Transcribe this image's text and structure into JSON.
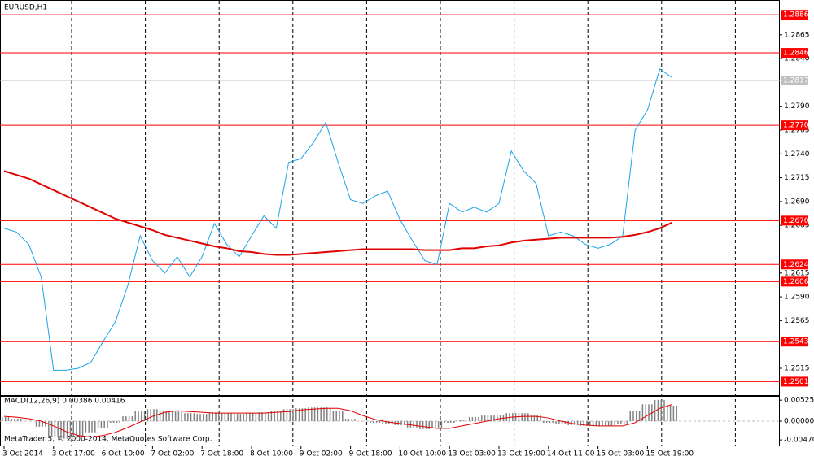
{
  "chart_data": [
    {
      "type": "line",
      "title": "EURUSD,H1",
      "categories": [
        "3 Oct 2014",
        null,
        null,
        null,
        "3 Oct 17:00",
        null,
        null,
        null,
        "6 Oct 10:00",
        null,
        null,
        null,
        "7 Oct 02:00",
        null,
        null,
        null,
        "7 Oct 18:00",
        null,
        null,
        null,
        "8 Oct 10:00",
        null,
        null,
        null,
        "9 Oct 02:00",
        null,
        null,
        null,
        "9 Oct 18:00",
        null,
        null,
        null,
        "10 Oct 10:00",
        null,
        null,
        null,
        "13 Oct 03:00",
        null,
        null,
        null,
        "13 Oct 19:00",
        null,
        null,
        null,
        "14 Oct 11:00",
        null,
        null,
        null,
        "15 Oct 03:00",
        null,
        null,
        null,
        "15 Oct 19:00",
        null,
        null
      ],
      "series": [
        {
          "name": "EURUSD",
          "color": "#1aa3e8",
          "values": [
            1.2662,
            1.2658,
            1.2645,
            1.2611,
            1.2513,
            1.2513,
            1.2515,
            1.2521,
            1.2543,
            1.2564,
            1.2602,
            1.2654,
            1.2628,
            1.2615,
            1.2632,
            1.2611,
            1.2632,
            1.2667,
            1.2645,
            1.2632,
            1.2654,
            1.2675,
            1.2662,
            1.2731,
            1.2735,
            1.2752,
            1.2773,
            1.2731,
            1.2692,
            1.2688,
            1.2696,
            1.2701,
            1.2671,
            1.2649,
            1.2628,
            1.2624,
            1.2688,
            1.2679,
            1.2684,
            1.2679,
            1.2688,
            1.2743,
            1.2722,
            1.2709,
            1.2654,
            1.2658,
            1.2654,
            1.2645,
            1.2641,
            1.2645,
            1.2654,
            1.2765,
            1.2786,
            1.2829,
            1.282
          ]
        },
        {
          "name": "MA",
          "color": "#e00000",
          "values": [
            1.2722,
            1.2718,
            1.2714,
            1.2708,
            1.2702,
            1.2696,
            1.269,
            1.2684,
            1.2678,
            1.2672,
            1.2668,
            1.2664,
            1.266,
            1.2655,
            1.2652,
            1.2649,
            1.2646,
            1.2643,
            1.2641,
            1.2638,
            1.2637,
            1.2635,
            1.2634,
            1.2634,
            1.2635,
            1.2636,
            1.2637,
            1.2638,
            1.2639,
            1.264,
            1.264,
            1.264,
            1.264,
            1.264,
            1.2639,
            1.2639,
            1.2639,
            1.2641,
            1.2641,
            1.2643,
            1.2644,
            1.2647,
            1.2649,
            1.265,
            1.2651,
            1.2652,
            1.2652,
            1.2652,
            1.2652,
            1.2652,
            1.2653,
            1.2655,
            1.2658,
            1.2662,
            1.2668
          ]
        }
      ],
      "ylim": [
        1.2486,
        1.29015
      ],
      "yticks": [
        1.2865,
        {
          "value": 1.284,
          "label": "1.2840"
        },
        {
          "value": 1.279,
          "label": "1.2790"
        },
        1.2765,
        {
          "value": 1.274,
          "label": "1.2740"
        },
        1.2715,
        {
          "value": 1.269,
          "label": "1.2690"
        },
        1.2665,
        1.2615,
        {
          "value": 1.259,
          "label": "1.2590"
        },
        1.2565,
        1.2515
      ],
      "levels": [
        1.2886,
        1.2846,
        {
          "value": 1.277,
          "label": "1.2770"
        },
        {
          "value": 1.267,
          "label": "1.2670"
        },
        1.2624,
        1.2606,
        1.2543,
        1.2501
      ],
      "level_color": "#ff0000",
      "current_price": 1.2817,
      "current_price_color": "#c0c0c0"
    },
    {
      "type": "bar",
      "title": "MACD(12,26,9) 0.00386 0.00416",
      "series": [
        {
          "name": "MACD",
          "color": "#808080",
          "values": [
            0.001,
            0.0006,
            0,
            -0.0014,
            -0.004,
            -0.0044,
            -0.0038,
            -0.0028,
            -0.0018,
            -0.0004,
            0.0012,
            0.0026,
            0.003,
            0.0026,
            0.0024,
            0.002,
            0.0018,
            0.0022,
            0.002,
            0.0018,
            0.002,
            0.0022,
            0.0026,
            0.003,
            0.0032,
            0.0034,
            0.0034,
            0.0026,
            0.0006,
            0,
            -0.0004,
            -0.0006,
            -0.001,
            -0.0016,
            -0.002,
            -0.0018,
            -0.0004,
            0.0004,
            0.001,
            0.0014,
            0.0014,
            0.002,
            0.002,
            0.0014,
            -0.0004,
            -0.0008,
            -0.001,
            -0.0012,
            -0.0012,
            -0.0012,
            -0.0008,
            0.0026,
            0.0042,
            0.0053,
            0.00386
          ]
        },
        {
          "name": "Signal",
          "color": "#e00000",
          "values": [
            0.0012,
            0.001,
            0.0006,
            0.0,
            -0.0012,
            -0.0026,
            -0.0036,
            -0.004,
            -0.0036,
            -0.0028,
            -0.0016,
            -0.0002,
            0.0012,
            0.0022,
            0.0026,
            0.0024,
            0.0022,
            0.002,
            0.002,
            0.002,
            0.002,
            0.002,
            0.0022,
            0.0024,
            0.0028,
            0.003,
            0.0032,
            0.0032,
            0.0026,
            0.0014,
            0.0004,
            -0.0002,
            -0.0006,
            -0.001,
            -0.0014,
            -0.0018,
            -0.0018,
            -0.0012,
            -0.0006,
            0.0,
            0.0006,
            0.001,
            0.0012,
            0.0012,
            0.0008,
            0.0,
            -0.0006,
            -0.001,
            -0.0012,
            -0.0012,
            -0.0012,
            -0.0004,
            0.0014,
            0.0032,
            0.00416
          ]
        }
      ],
      "ylim": [
        -0.0063,
        0.0063
      ],
      "yticks": [
        {
          "value": 0.00525,
          "label": "0.00525"
        },
        {
          "value": 0,
          "label": "0.00000"
        },
        {
          "value": -0.0047,
          "label": "-0.00470"
        }
      ]
    }
  ],
  "footer": "MetaTrader 5, © 2000-2014, MetaQuotes Software Corp."
}
